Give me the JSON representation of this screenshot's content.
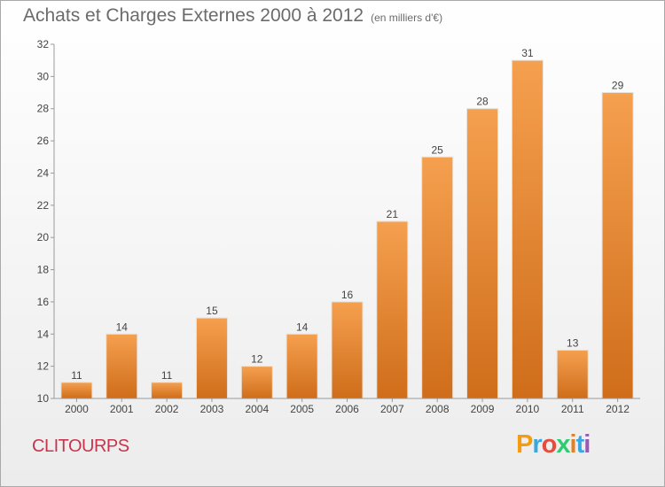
{
  "title": "Achats et Charges Externes 2000 à 2012",
  "unit": "(en milliers d'€)",
  "commune": "CLITOURPS",
  "logo": {
    "letters": [
      "P",
      "r",
      "o",
      "x",
      "i",
      "t",
      "i"
    ],
    "colors": [
      "#f39c12",
      "#3aa8e0",
      "#e74c3c",
      "#2ecc71",
      "#e67e22",
      "#3aa8e0",
      "#9b59b6"
    ]
  },
  "colors": {
    "bar_top": "#f5a04f",
    "bar_bottom": "#cf6d1a",
    "commune": "#c8344c"
  },
  "chart_data": {
    "type": "bar",
    "categories": [
      "2000",
      "2001",
      "2002",
      "2003",
      "2004",
      "2005",
      "2006",
      "2007",
      "2008",
      "2009",
      "2010",
      "2011",
      "2012"
    ],
    "values": [
      11,
      14,
      11,
      15,
      12,
      14,
      16,
      21,
      25,
      28,
      31,
      13,
      29
    ],
    "ylim": [
      10,
      32
    ],
    "yticks": [
      10,
      12,
      14,
      16,
      18,
      20,
      22,
      24,
      26,
      28,
      30,
      32
    ],
    "title": "Achats et Charges Externes 2000 à 2012",
    "xlabel": "",
    "ylabel": "",
    "grid": false,
    "legend": "none"
  }
}
